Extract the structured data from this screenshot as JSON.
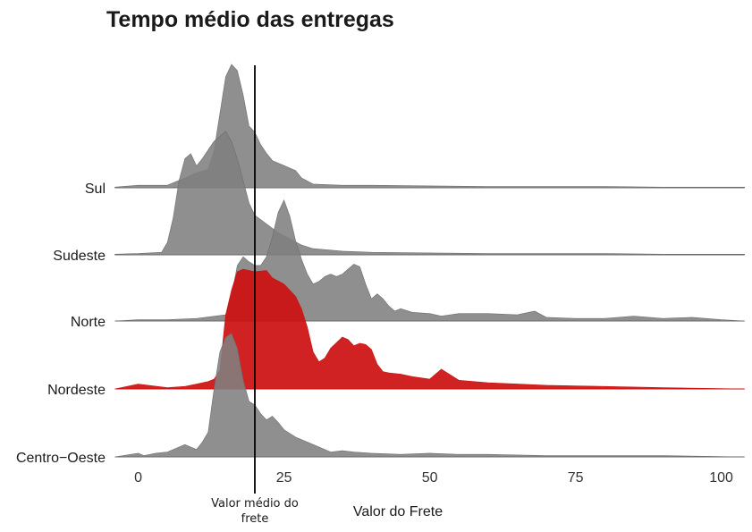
{
  "chart_data": {
    "type": "area",
    "subtype": "ridgeline",
    "title": "Tempo médio das entregas",
    "xlabel": "Valor do Frete",
    "ylabel": "",
    "xlim": [
      -4,
      104
    ],
    "x_ticks": [
      0,
      25,
      50,
      75,
      100
    ],
    "categories": [
      "Sul",
      "Sudeste",
      "Norte",
      "Nordeste",
      "Centro−Oeste"
    ],
    "reference_line": {
      "x": 20,
      "label": "Valor médio do frete"
    },
    "grid": false,
    "legend": "none",
    "colors": {
      "default": "#7f7f7f",
      "highlight": "#cc1111",
      "highlight_series": "Nordeste"
    },
    "series": [
      {
        "name": "Sul",
        "x": [
          -4,
          0,
          5,
          8,
          10,
          12,
          13,
          14,
          15,
          16,
          17,
          18,
          19,
          20,
          21,
          22,
          23,
          25,
          27,
          28,
          30,
          35,
          40,
          50,
          60,
          70,
          80,
          90,
          104
        ],
        "values": [
          0.005,
          0.02,
          0.02,
          0.08,
          0.12,
          0.15,
          0.3,
          0.6,
          0.9,
          1.0,
          0.95,
          0.75,
          0.5,
          0.45,
          0.35,
          0.28,
          0.22,
          0.18,
          0.14,
          0.08,
          0.03,
          0.02,
          0.02,
          0.015,
          0.01,
          0.01,
          0.01,
          0.005,
          0.005
        ]
      },
      {
        "name": "Sudeste",
        "x": [
          -4,
          0,
          4,
          5,
          6,
          7,
          8,
          9,
          10,
          11,
          12,
          13,
          14,
          15,
          16,
          17,
          18,
          19,
          20,
          22,
          24,
          26,
          28,
          30,
          35,
          40,
          50,
          60,
          70,
          80,
          90,
          104
        ],
        "values": [
          0.005,
          0.01,
          0.02,
          0.1,
          0.3,
          0.6,
          0.78,
          0.82,
          0.72,
          0.78,
          0.85,
          0.92,
          0.96,
          1.0,
          0.92,
          0.78,
          0.6,
          0.42,
          0.32,
          0.25,
          0.18,
          0.13,
          0.08,
          0.05,
          0.03,
          0.02,
          0.015,
          0.01,
          0.01,
          0.01,
          0.005,
          0.005
        ]
      },
      {
        "name": "Norte",
        "x": [
          -4,
          0,
          5,
          10,
          15,
          16,
          17,
          18,
          19,
          20,
          21,
          22,
          23,
          24,
          25,
          26,
          27,
          28,
          29,
          30,
          31,
          32,
          33,
          34,
          35,
          36,
          37,
          38,
          39,
          40,
          41,
          42,
          43,
          44,
          45,
          47,
          50,
          52,
          55,
          60,
          65,
          68,
          70,
          75,
          80,
          85,
          90,
          95,
          100,
          104
        ],
        "values": [
          0.0,
          0.01,
          0.01,
          0.02,
          0.05,
          0.2,
          0.45,
          0.52,
          0.48,
          0.45,
          0.45,
          0.52,
          0.68,
          0.88,
          0.98,
          0.85,
          0.65,
          0.5,
          0.38,
          0.3,
          0.32,
          0.36,
          0.38,
          0.36,
          0.38,
          0.42,
          0.46,
          0.44,
          0.3,
          0.18,
          0.22,
          0.18,
          0.12,
          0.08,
          0.1,
          0.07,
          0.06,
          0.04,
          0.06,
          0.06,
          0.05,
          0.08,
          0.03,
          0.02,
          0.02,
          0.04,
          0.02,
          0.03,
          0.01,
          0.0
        ]
      },
      {
        "name": "Nordeste",
        "x": [
          -4,
          0,
          5,
          8,
          10,
          12,
          13,
          14,
          15,
          16,
          17,
          18,
          20,
          22,
          23,
          25,
          27,
          28,
          29,
          30,
          31,
          32,
          33,
          35,
          36,
          37,
          38,
          39,
          40,
          41,
          42,
          43,
          45,
          47,
          50,
          52,
          55,
          60,
          70,
          80,
          90,
          104
        ],
        "values": [
          0.0,
          0.04,
          0.01,
          0.02,
          0.04,
          0.06,
          0.08,
          0.15,
          0.6,
          0.8,
          0.95,
          0.97,
          0.95,
          0.96,
          0.9,
          0.85,
          0.75,
          0.65,
          0.5,
          0.3,
          0.22,
          0.25,
          0.33,
          0.42,
          0.4,
          0.35,
          0.37,
          0.36,
          0.32,
          0.2,
          0.14,
          0.13,
          0.12,
          0.1,
          0.08,
          0.16,
          0.07,
          0.05,
          0.03,
          0.02,
          0.01,
          0.0
        ]
      },
      {
        "name": "Centro−Oeste",
        "x": [
          -4,
          0,
          1,
          3,
          5,
          8,
          9,
          10,
          11,
          12,
          13,
          14,
          15,
          16,
          17,
          18,
          19,
          20,
          21,
          22,
          23,
          24,
          25,
          27,
          30,
          33,
          35,
          37,
          40,
          45,
          50,
          55,
          60,
          70,
          80,
          90,
          104
        ],
        "values": [
          0.0,
          0.03,
          0.01,
          0.03,
          0.04,
          0.1,
          0.08,
          0.06,
          0.12,
          0.2,
          0.55,
          0.85,
          0.97,
          1.0,
          0.88,
          0.62,
          0.45,
          0.42,
          0.35,
          0.3,
          0.33,
          0.28,
          0.22,
          0.16,
          0.1,
          0.04,
          0.05,
          0.04,
          0.03,
          0.02,
          0.03,
          0.02,
          0.02,
          0.01,
          0.01,
          0.01,
          0.0
        ]
      }
    ]
  }
}
